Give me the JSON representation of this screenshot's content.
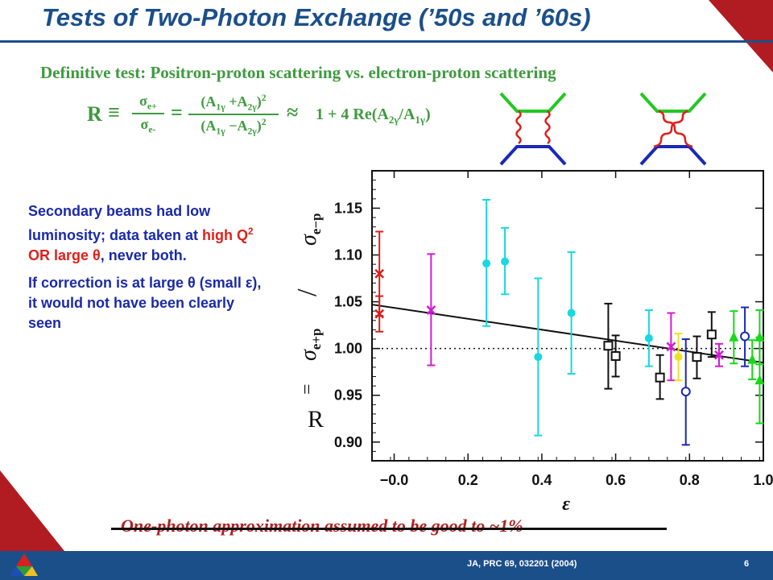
{
  "slide": {
    "title": "Tests of Two-Photon Exchange (’50s and ’60s)",
    "subtitle": "Definitive test: Positron-proton scattering vs. electron-proton scattering",
    "formula": {
      "R": "R",
      "equiv": "≡",
      "sigma_plus": "σ",
      "sub_plus": "e+",
      "sigma_minus": "σ",
      "sub_minus": "e-",
      "eq": "=",
      "num": "(A",
      "num_sub1": "1γ",
      "num_mid": " +A",
      "num_sub2": "2γ",
      "num_end": ")",
      "den": "(A",
      "den_sub1": "1γ",
      "den_mid": " −A",
      "den_sub2": "2γ",
      "den_end": ")",
      "sq": "2",
      "approx": "≈",
      "rhs_a": "1 + 4 Re(A",
      "rhs_sub1": "2γ",
      "rhs_b": "/A",
      "rhs_sub2": "1γ",
      "rhs_c": ")"
    },
    "body": {
      "p1_a": "Secondary beams had low luminosity; data taken at ",
      "p1_red": "high Q",
      "p1_sup": "2",
      "p1_red2": " OR large θ",
      "p1_b": ", never both.",
      "p2": "If correction is at large θ (small ε), it would not have been clearly seen"
    },
    "footer_note": "One-photon approximation assumed to be good to ~1%",
    "reference": "JA, PRC 69, 032201 (2004)",
    "page_number": "6"
  },
  "colors": {
    "brand_blue": "#1b4f8a",
    "accent_red": "#b01c22",
    "formula_green": "#3f9a3f",
    "text_blue": "#1a2aa8"
  },
  "chart_data": {
    "type": "scatter",
    "xlabel": "ε",
    "ylabel": "R = σe+p / σe−p",
    "ylabel_parts": {
      "R": "R",
      "eq": "=",
      "num": "σ",
      "num_sub": "e+p",
      "slash": "/",
      "den": "σ",
      "den_sub": "e−p"
    },
    "xlim": [
      -0.06,
      1.0
    ],
    "ylim": [
      0.88,
      1.19
    ],
    "x_ticks": [
      {
        "value": 0.0,
        "label": "−0.0"
      },
      {
        "value": 0.2,
        "label": "0.2"
      },
      {
        "value": 0.4,
        "label": "0.4"
      },
      {
        "value": 0.6,
        "label": "0.6"
      },
      {
        "value": 0.8,
        "label": "0.8"
      },
      {
        "value": 1.0,
        "label": "1.0"
      }
    ],
    "y_ticks": [
      {
        "value": 0.9,
        "label": "0.90"
      },
      {
        "value": 0.95,
        "label": "0.95"
      },
      {
        "value": 1.0,
        "label": "1.00"
      },
      {
        "value": 1.05,
        "label": "1.05"
      },
      {
        "value": 1.1,
        "label": "1.10"
      },
      {
        "value": 1.15,
        "label": "1.15"
      }
    ],
    "reference_line": {
      "y": 1.0,
      "style": "dotted"
    },
    "fit_line": {
      "x": [
        -0.06,
        1.0
      ],
      "y": [
        1.047,
        0.985
      ]
    },
    "series": [
      {
        "marker": "x",
        "color": "#d8201c",
        "points": [
          {
            "x": -0.04,
            "y": 1.08,
            "lo": 1.035,
            "hi": 1.125
          },
          {
            "x": -0.04,
            "y": 1.037,
            "lo": 1.018,
            "hi": 1.056
          }
        ]
      },
      {
        "marker": "x",
        "color": "#d41ad8",
        "points": [
          {
            "x": 0.1,
            "y": 1.041,
            "lo": 0.982,
            "hi": 1.101
          },
          {
            "x": 0.75,
            "y": 1.002,
            "lo": 0.966,
            "hi": 1.038
          },
          {
            "x": 0.88,
            "y": 0.993,
            "lo": 0.981,
            "hi": 1.005
          }
        ]
      },
      {
        "marker": "filled-circle",
        "color": "#18d8e0",
        "points": [
          {
            "x": 0.25,
            "y": 1.091,
            "lo": 1.024,
            "hi": 1.159
          },
          {
            "x": 0.3,
            "y": 1.093,
            "lo": 1.058,
            "hi": 1.129
          },
          {
            "x": 0.39,
            "y": 0.991,
            "lo": 0.907,
            "hi": 1.075
          },
          {
            "x": 0.48,
            "y": 1.038,
            "lo": 0.973,
            "hi": 1.103
          },
          {
            "x": 0.69,
            "y": 1.011,
            "lo": 0.981,
            "hi": 1.041
          }
        ]
      },
      {
        "marker": "open-square",
        "color": "#111111",
        "points": [
          {
            "x": 0.58,
            "y": 1.003,
            "lo": 0.957,
            "hi": 1.048
          },
          {
            "x": 0.6,
            "y": 0.992,
            "lo": 0.97,
            "hi": 1.014
          },
          {
            "x": 0.72,
            "y": 0.969,
            "lo": 0.946,
            "hi": 0.993
          },
          {
            "x": 0.82,
            "y": 0.991,
            "lo": 0.968,
            "hi": 1.013
          },
          {
            "x": 0.86,
            "y": 1.015,
            "lo": 0.991,
            "hi": 1.039
          }
        ]
      },
      {
        "marker": "filled-circle",
        "color": "#f0e020",
        "points": [
          {
            "x": 0.77,
            "y": 0.991,
            "lo": 0.966,
            "hi": 1.016
          }
        ]
      },
      {
        "marker": "open-circle",
        "color": "#1a28b8",
        "points": [
          {
            "x": 0.79,
            "y": 0.954,
            "lo": 0.897,
            "hi": 1.01
          },
          {
            "x": 0.95,
            "y": 1.013,
            "lo": 0.981,
            "hi": 1.044
          }
        ]
      },
      {
        "marker": "filled-triangle",
        "color": "#18d818",
        "points": [
          {
            "x": 0.92,
            "y": 1.012,
            "lo": 0.984,
            "hi": 1.04
          },
          {
            "x": 0.97,
            "y": 0.988,
            "lo": 0.967,
            "hi": 1.009
          },
          {
            "x": 0.99,
            "y": 1.012,
            "lo": 0.983,
            "hi": 1.041
          },
          {
            "x": 0.99,
            "y": 0.966,
            "lo": 0.92,
            "hi": 1.012
          }
        ]
      }
    ]
  }
}
